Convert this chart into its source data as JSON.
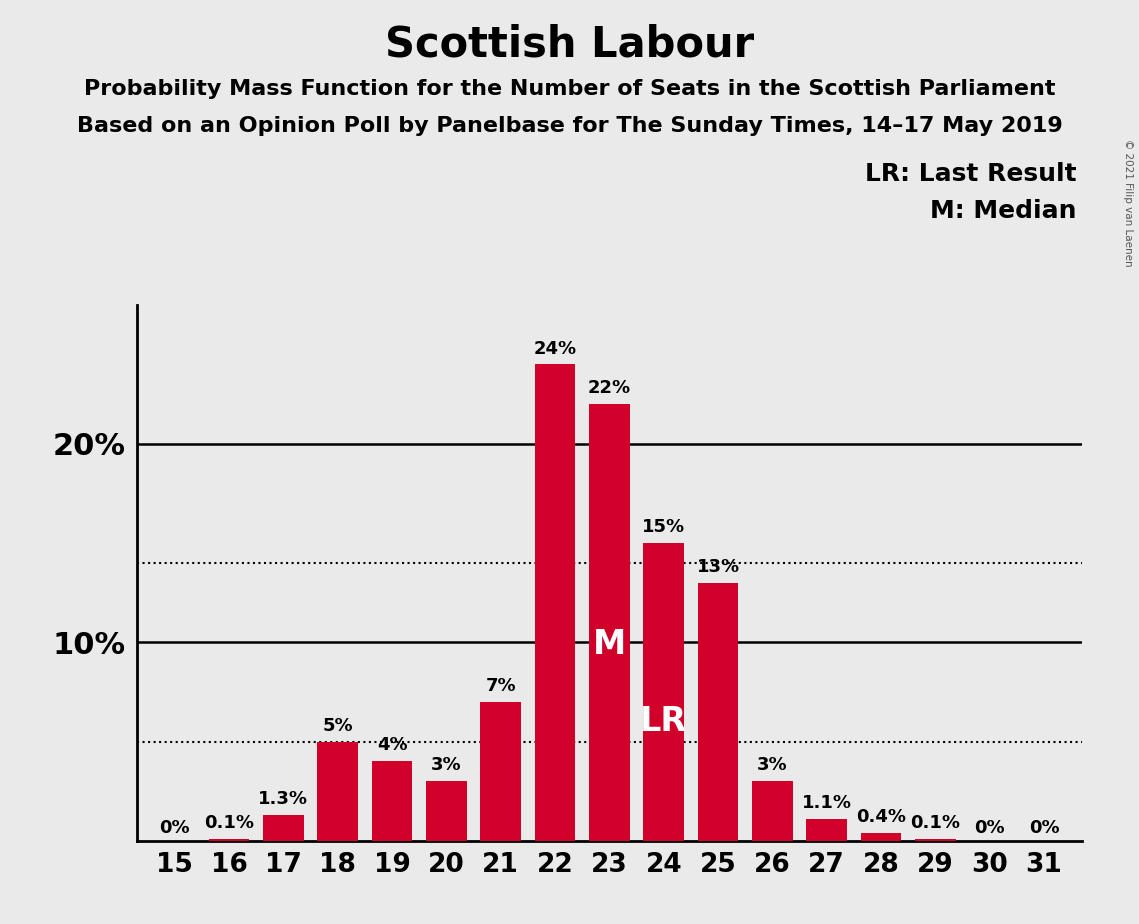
{
  "title": "Scottish Labour",
  "subtitle1": "Probability Mass Function for the Number of Seats in the Scottish Parliament",
  "subtitle2": "Based on an Opinion Poll by Panelbase for The Sunday Times, 14–17 May 2019",
  "copyright": "© 2021 Filip van Laenen",
  "seats": [
    15,
    16,
    17,
    18,
    19,
    20,
    21,
    22,
    23,
    24,
    25,
    26,
    27,
    28,
    29,
    30,
    31
  ],
  "probabilities": [
    0.0,
    0.1,
    1.3,
    5.0,
    4.0,
    3.0,
    7.0,
    24.0,
    22.0,
    15.0,
    13.0,
    3.0,
    1.1,
    0.4,
    0.1,
    0.0,
    0.0
  ],
  "bar_color": "#D0002B",
  "bar_labels": [
    "0%",
    "0.1%",
    "1.3%",
    "5%",
    "4%",
    "3%",
    "7%",
    "24%",
    "22%",
    "15%",
    "13%",
    "3%",
    "1.1%",
    "0.4%",
    "0.1%",
    "0%",
    "0%"
  ],
  "median_seat": 23,
  "lr_seat": 24,
  "median_label": "M",
  "lr_label": "LR",
  "legend_lr": "LR: Last Result",
  "legend_m": "M: Median",
  "dotted_lines": [
    5.0,
    14.0
  ],
  "solid_lines": [
    10.0,
    20.0
  ],
  "ylim": [
    0,
    27
  ],
  "background_color": "#EAEAEA",
  "title_fontsize": 30,
  "subtitle_fontsize": 16,
  "tick_fontsize": 19,
  "bar_label_fontsize": 13,
  "ylabel_fontsize": 22,
  "legend_fontsize": 18,
  "inbar_label_fontsize": 24
}
